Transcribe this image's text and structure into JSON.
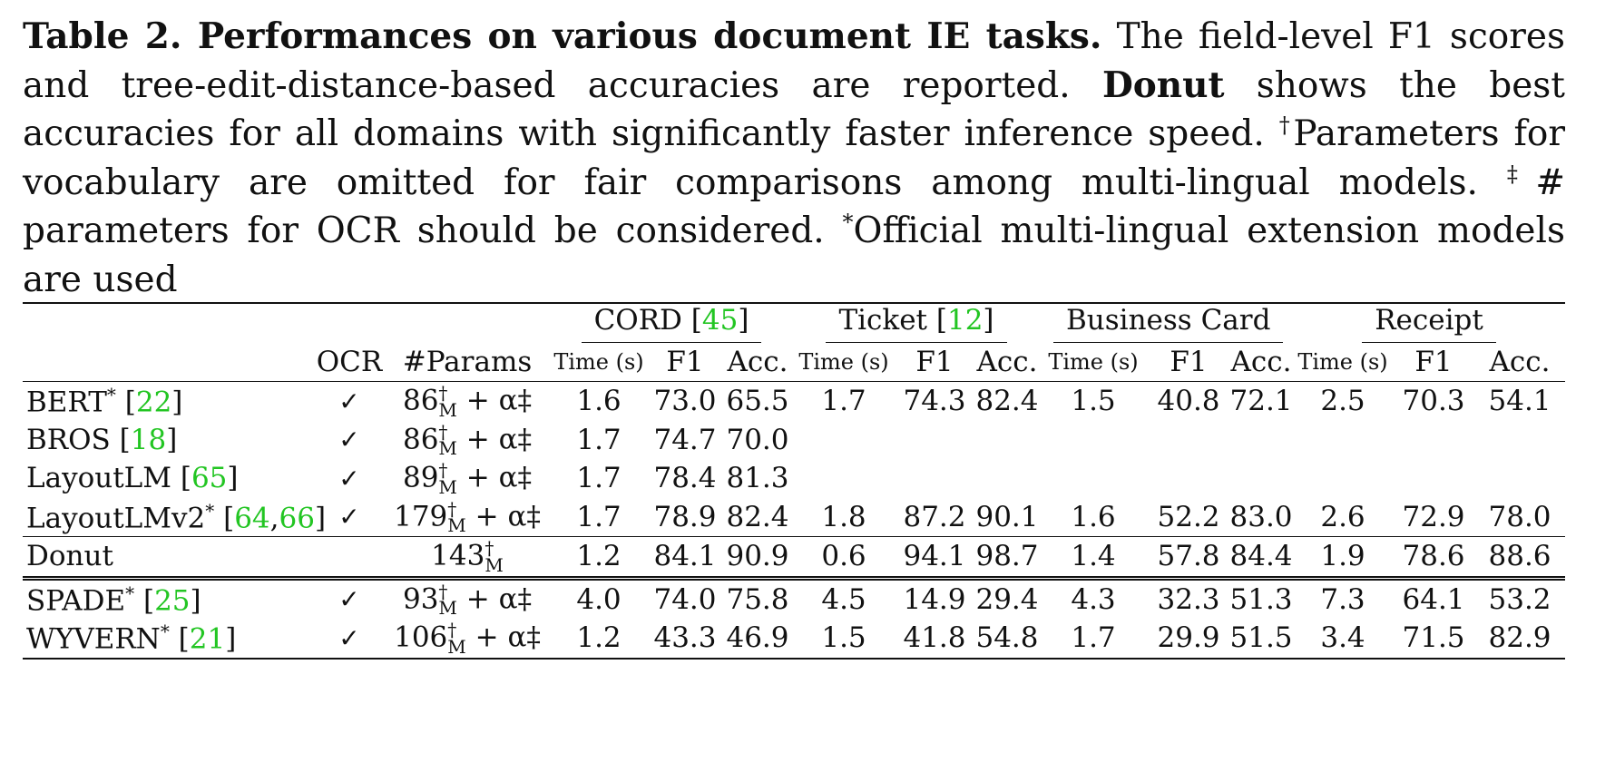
{
  "caption": {
    "label": "Table 2. Performances on various document IE tasks.",
    "text1": " The field-level F1 scores and tree-edit-distance-based accuracies are reported. ",
    "donut": "Donut",
    "text2": " shows the best accuracies for all domains with significantly faster inference speed. ",
    "dagger": "†",
    "text3": "Parameters for vocabulary are omitted for fair comparisons among multi-lingual models. ",
    "ddagger": "‡",
    "text4": "# parameters for OCR should be considered. ",
    "star": "*",
    "text5": "Official multi-lingual extension models are used"
  },
  "table": {
    "groups": [
      {
        "name": "CORD",
        "cite": "45"
      },
      {
        "name": "Ticket",
        "cite": "12"
      },
      {
        "name": "Business Card",
        "cite": ""
      },
      {
        "name": "Receipt",
        "cite": ""
      }
    ],
    "headers": {
      "ocr": "OCR",
      "params": "#Params",
      "time": "Time (s)",
      "f1": "F1",
      "acc": "Acc."
    },
    "rows": [
      {
        "name": "BERT",
        "star": "*",
        "cites": [
          "22"
        ],
        "ocr": "✓",
        "params_base": "86",
        "params_sup": "†",
        "params_sub": "M",
        "params_extra": " + α‡",
        "values": [
          "1.6",
          "73.0",
          "65.5",
          "1.7",
          "74.3",
          "82.4",
          "1.5",
          "40.8",
          "72.1",
          "2.5",
          "70.3",
          "54.1"
        ]
      },
      {
        "name": "BROS",
        "star": "",
        "cites": [
          "18"
        ],
        "ocr": "✓",
        "params_base": "86",
        "params_sup": "†",
        "params_sub": "M",
        "params_extra": " + α‡",
        "values": [
          "1.7",
          "74.7",
          "70.0",
          "",
          "",
          "",
          "",
          "",
          "",
          "",
          "",
          ""
        ]
      },
      {
        "name": "LayoutLM",
        "star": "",
        "cites": [
          "65"
        ],
        "ocr": "✓",
        "params_base": "89",
        "params_sup": "†",
        "params_sub": "M",
        "params_extra": " + α‡",
        "values": [
          "1.7",
          "78.4",
          "81.3",
          "",
          "",
          "",
          "",
          "",
          "",
          "",
          "",
          ""
        ]
      },
      {
        "name": "LayoutLMv2",
        "star": "*",
        "cites": [
          "64",
          "66"
        ],
        "ocr": "✓",
        "params_base": "179",
        "params_sup": "†",
        "params_sub": "M",
        "params_extra": " + α‡",
        "values": [
          "1.7",
          "78.9",
          "82.4",
          "1.8",
          "87.2",
          "90.1",
          "1.6",
          "52.2",
          "83.0",
          "2.6",
          "72.9",
          "78.0"
        ]
      },
      {
        "name": "Donut",
        "star": "",
        "cites": [],
        "ocr": "",
        "params_base": "143",
        "params_sup": "†",
        "params_sub": "M",
        "params_extra": "",
        "values": [
          "1.2",
          "84.1",
          "90.9",
          "0.6",
          "94.1",
          "98.7",
          "1.4",
          "57.8",
          "84.4",
          "1.9",
          "78.6",
          "88.6"
        ]
      },
      {
        "name": "SPADE",
        "star": "*",
        "cites": [
          "25"
        ],
        "ocr": "✓",
        "params_base": "93",
        "params_sup": "†",
        "params_sub": "M",
        "params_extra": " + α‡",
        "values": [
          "4.0",
          "74.0",
          "75.8",
          "4.5",
          "14.9",
          "29.4",
          "4.3",
          "32.3",
          "51.3",
          "7.3",
          "64.1",
          "53.2"
        ]
      },
      {
        "name": "WYVERN",
        "star": "*",
        "cites": [
          "21"
        ],
        "ocr": "✓",
        "params_base": "106",
        "params_sup": "†",
        "params_sub": "M",
        "params_extra": " + α‡",
        "values": [
          "1.2",
          "43.3",
          "46.9",
          "1.5",
          "41.8",
          "54.8",
          "1.7",
          "29.9",
          "51.5",
          "3.4",
          "71.5",
          "82.9"
        ]
      }
    ]
  }
}
